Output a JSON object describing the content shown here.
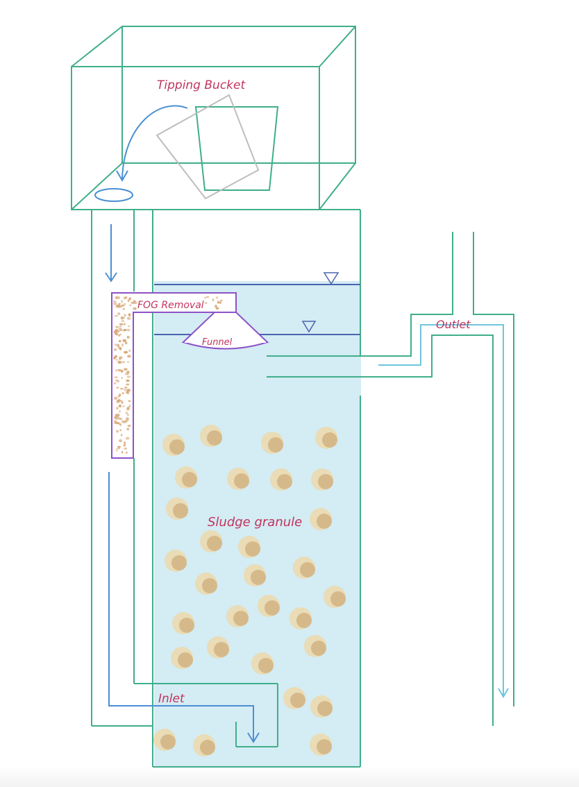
{
  "labels": {
    "tipping_bucket": "Tipping Bucket",
    "fog_removal": "FOG Removal",
    "funnel": "Funnel",
    "outlet": "Outlet",
    "sludge_granule": "Sludge granule",
    "inlet": "Inlet"
  },
  "colors": {
    "structure": "#3fae8a",
    "water": "#d4ecf3",
    "label": "#c2345e",
    "arrow": "#4a8fd4",
    "fog_box": "#8b52c9",
    "granule_outer": "#e9dcb6",
    "granule_inner": "#d6b98a",
    "fog_speckle": "#d8a877",
    "outlet_flow": "#6ec6dd",
    "level_line": "#4a64b0"
  }
}
